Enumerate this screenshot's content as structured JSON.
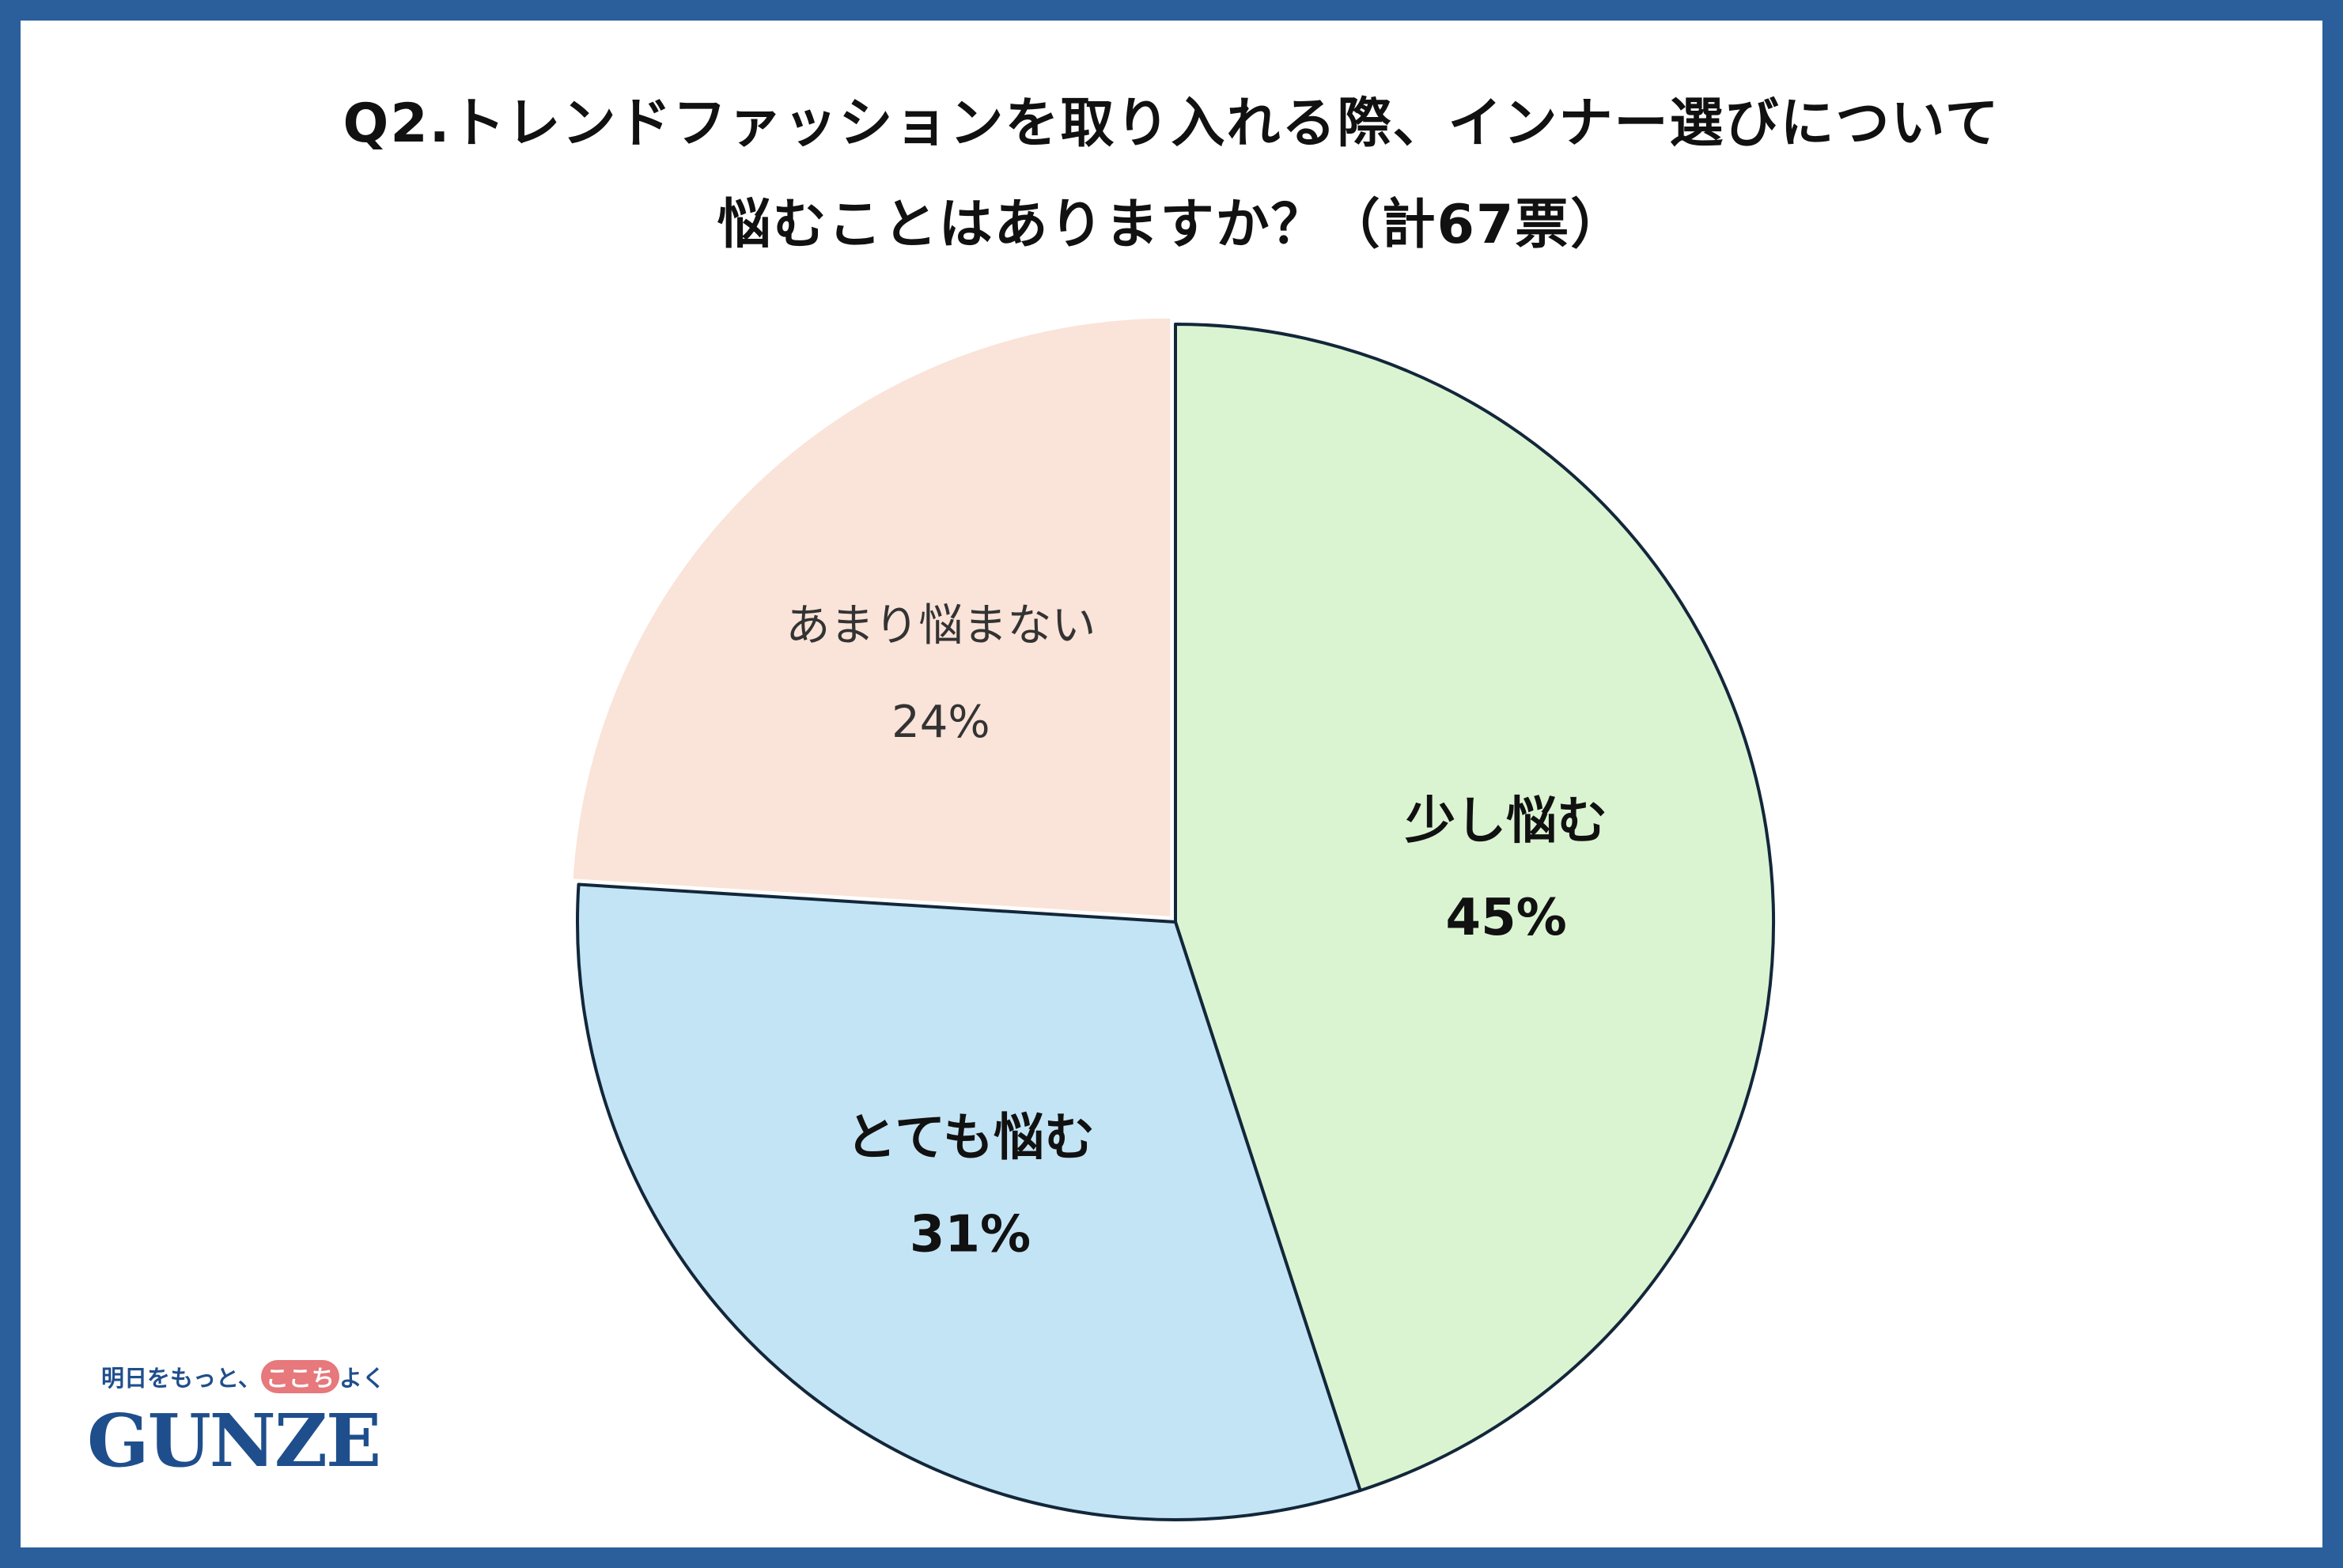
{
  "title_line1": "Q2.トレンドファッションを取り入れる際、インナー選びについて",
  "title_line2": "悩むことはありますか？（計67票）",
  "chart_data": {
    "type": "pie",
    "start_angle": "top",
    "direction": "clockwise",
    "slices": [
      {
        "label": "少し悩む",
        "value": 45,
        "value_label": "45%",
        "color": "#daf4d2",
        "bold": true,
        "exploded": false
      },
      {
        "label": "とても悩む",
        "value": 31,
        "value_label": "31%",
        "color": "#c3e4f5",
        "bold": true,
        "exploded": false
      },
      {
        "label": "あまり悩まない",
        "value": 24,
        "value_label": "24%",
        "color": "#fae3d8",
        "bold": false,
        "exploded": true
      }
    ],
    "stroke_color": "#13273a"
  },
  "logo": {
    "tagline_before": "明日をもっと、",
    "tagline_highlight": "ここち",
    "tagline_after": "よく",
    "wordmark": "GUNZE",
    "color": "#1f4e8c",
    "highlight_color": "#e7787b"
  },
  "frame_color": "#2a5f9b"
}
